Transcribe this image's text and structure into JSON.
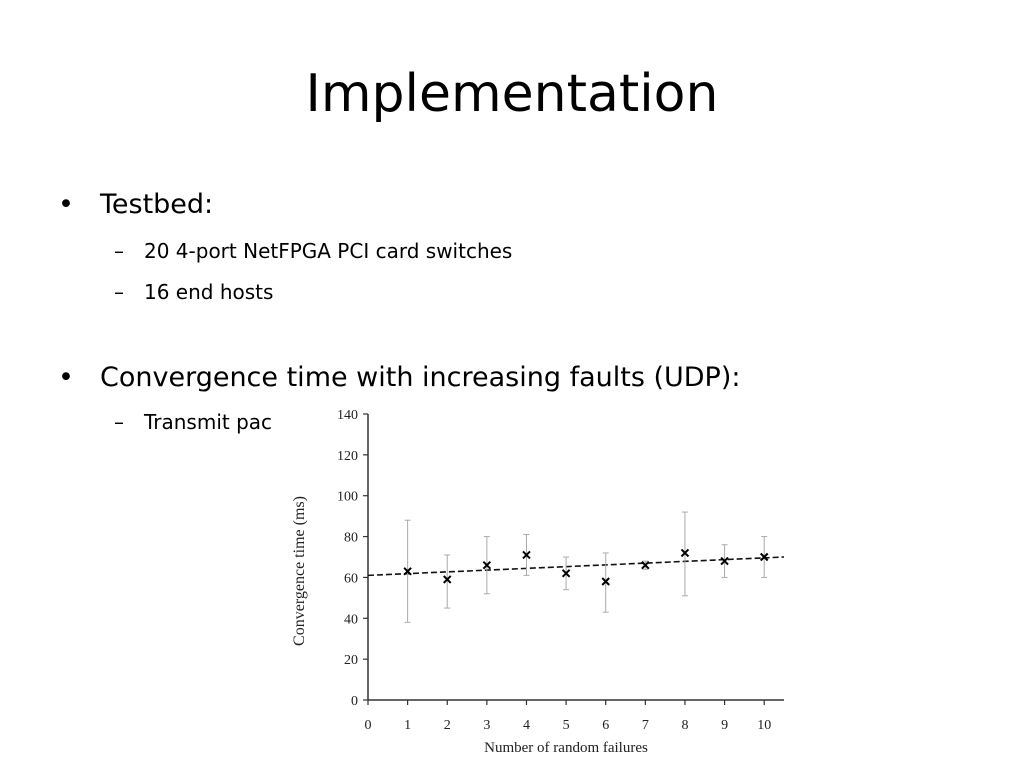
{
  "slide": {
    "title": "Implementation",
    "bullets": [
      {
        "text": "Testbed:",
        "subs": [
          "20 4-port NetFPGA PCI card switches",
          "16 end hosts"
        ]
      },
      {
        "text": "Convergence time with increasing faults (UDP):",
        "subs": [
          "Transmit pac"
        ]
      }
    ],
    "bullet_glyph": "•",
    "sub_glyph": "–"
  },
  "chart_data": {
    "type": "scatter",
    "title": "",
    "xlabel": "Number of random failures",
    "ylabel": "Convergence time (ms)",
    "xlim": [
      0,
      10.5
    ],
    "ylim": [
      0,
      140
    ],
    "x_ticks": [
      0,
      1,
      2,
      3,
      4,
      5,
      6,
      7,
      8,
      9,
      10
    ],
    "y_ticks": [
      0,
      20,
      40,
      60,
      80,
      100,
      120,
      140
    ],
    "grid": false,
    "marker": "x",
    "points": [
      {
        "x": 1,
        "y": 63,
        "err_low": 38,
        "err_high": 88
      },
      {
        "x": 2,
        "y": 59,
        "err_low": 45,
        "err_high": 71
      },
      {
        "x": 3,
        "y": 66,
        "err_low": 52,
        "err_high": 80
      },
      {
        "x": 4,
        "y": 71,
        "err_low": 61,
        "err_high": 81
      },
      {
        "x": 5,
        "y": 62,
        "err_low": 54,
        "err_high": 70
      },
      {
        "x": 6,
        "y": 58,
        "err_low": 43,
        "err_high": 72
      },
      {
        "x": 7,
        "y": 66,
        "err_low": 64,
        "err_high": 68
      },
      {
        "x": 8,
        "y": 72,
        "err_low": 51,
        "err_high": 92
      },
      {
        "x": 9,
        "y": 68,
        "err_low": 60,
        "err_high": 76
      },
      {
        "x": 10,
        "y": 70,
        "err_low": 60,
        "err_high": 80
      }
    ],
    "trend_line": {
      "style": "dashed",
      "y_at_x0": 61,
      "y_at_xmax": 70
    }
  }
}
